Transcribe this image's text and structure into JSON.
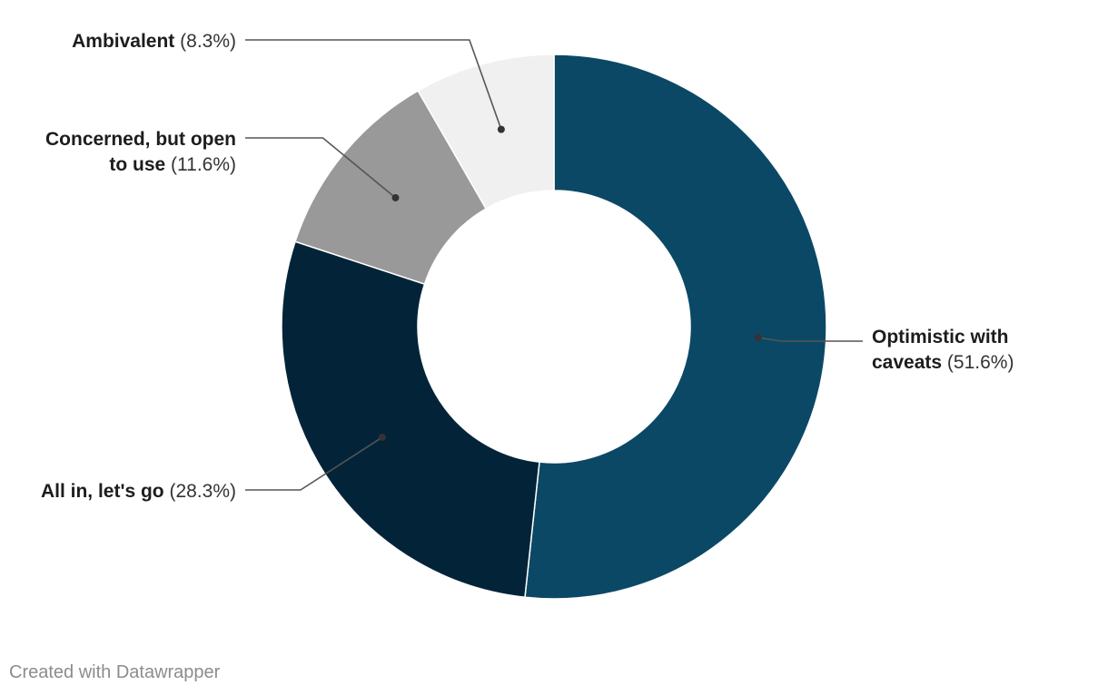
{
  "chart_data": {
    "type": "pie",
    "variant": "donut",
    "legend": "none",
    "slices": [
      {
        "name": "Optimistic with caveats",
        "label_lines": [
          "Optimistic with",
          "caveats"
        ],
        "value": 51.6,
        "value_label": "(51.6%)",
        "color": "#0b4865"
      },
      {
        "name": "All in, let's go",
        "label_lines": [
          "All in, let's go"
        ],
        "value": 28.3,
        "value_label": "(28.3%)",
        "color": "#032438"
      },
      {
        "name": "Concerned, but open to use",
        "label_lines": [
          "Concerned, but open",
          "to use"
        ],
        "value": 11.6,
        "value_label": "(11.6%)",
        "color": "#999999"
      },
      {
        "name": "Ambivalent",
        "label_lines": [
          "Ambivalent"
        ],
        "value": 8.3,
        "value_label": "(8.3%)",
        "color": "#f0f0f0"
      }
    ]
  },
  "footer": {
    "credit": "Created with Datawrapper"
  }
}
